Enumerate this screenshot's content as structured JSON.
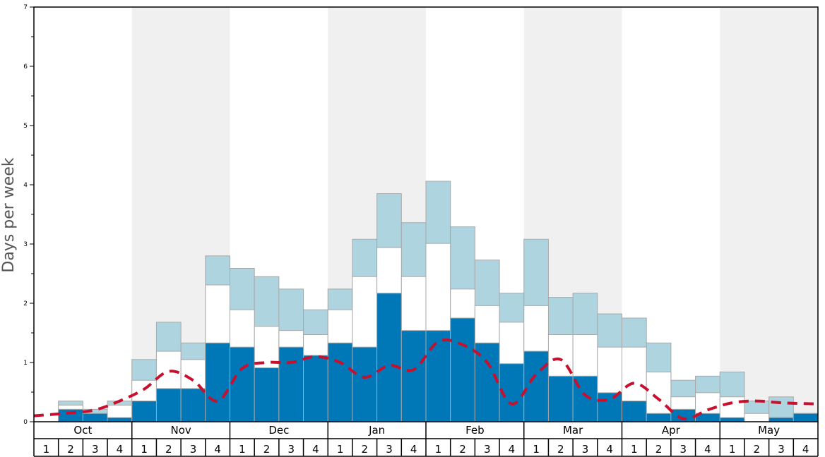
{
  "chart_data": {
    "type": "bar",
    "ylabel": "Days per week",
    "ylim": [
      0,
      7
    ],
    "yticks": [
      "0",
      "1",
      "2",
      "3",
      "4",
      "5",
      "6",
      "7"
    ],
    "months": [
      "Oct",
      "Nov",
      "Dec",
      "Jan",
      "Feb",
      "Mar",
      "Apr",
      "May"
    ],
    "weeks": [
      "1",
      "2",
      "3",
      "4"
    ],
    "categories": [
      "Oct 1",
      "Oct 2",
      "Oct 3",
      "Oct 4",
      "Nov 1",
      "Nov 2",
      "Nov 3",
      "Nov 4",
      "Dec 1",
      "Dec 2",
      "Dec 3",
      "Dec 4",
      "Jan 1",
      "Jan 2",
      "Jan 3",
      "Jan 4",
      "Feb 1",
      "Feb 2",
      "Feb 3",
      "Feb 4",
      "Mar 1",
      "Mar 2",
      "Mar 3",
      "Mar 4",
      "Apr 1",
      "Apr 2",
      "Apr 3",
      "Apr 4",
      "May 1",
      "May 2",
      "May 3",
      "May 4"
    ],
    "series": [
      {
        "values": [
          0,
          0.21,
          0.14,
          0.07,
          0.35,
          0.56,
          0.56,
          1.33,
          1.26,
          0.91,
          1.26,
          1.12,
          1.33,
          1.26,
          2.17,
          1.54,
          1.54,
          1.75,
          1.33,
          0.98,
          1.19,
          0.77,
          0.77,
          0.49,
          0.35,
          0.14,
          0.21,
          0.14,
          0.07,
          0,
          0.07,
          0.14
        ]
      },
      {
        "values": [
          0,
          0.28,
          0.14,
          0.28,
          0.7,
          1.19,
          1.05,
          2.31,
          1.89,
          1.61,
          1.54,
          1.47,
          1.89,
          2.45,
          2.94,
          2.45,
          3.01,
          2.24,
          1.96,
          1.68,
          1.96,
          1.47,
          1.47,
          1.26,
          1.26,
          0.84,
          0.42,
          0.49,
          0.42,
          0.14,
          0.07,
          0.14
        ]
      },
      {
        "values": [
          0,
          0.35,
          0.21,
          0.35,
          1.05,
          1.68,
          1.33,
          2.8,
          2.59,
          2.45,
          2.24,
          1.89,
          2.24,
          3.08,
          3.85,
          3.36,
          4.06,
          3.29,
          2.73,
          2.17,
          3.08,
          2.1,
          2.17,
          1.82,
          1.75,
          1.33,
          0.7,
          0.77,
          0.84,
          0.35,
          0.42,
          0.14
        ]
      },
      {
        "values": [
          0.1,
          0.15,
          0.2,
          0.35,
          0.55,
          0.85,
          0.7,
          0.35,
          0.9,
          1.0,
          1.0,
          1.1,
          1.0,
          0.75,
          0.95,
          0.88,
          1.35,
          1.3,
          1.0,
          0.3,
          0.8,
          1.05,
          0.45,
          0.38,
          0.65,
          0.38,
          0.05,
          0.2,
          0.32,
          0.35,
          0.32,
          0.3
        ]
      }
    ],
    "colors": {
      "series_1": "#0077b6",
      "series_2": "#ffffff",
      "series_3": "#aed4e0",
      "line": "#c8102e",
      "band": "#f0f0f0",
      "bar_stroke": "#a8a8a8",
      "frame": "#000000"
    },
    "grid": false,
    "alternating_month_bands": true
  }
}
